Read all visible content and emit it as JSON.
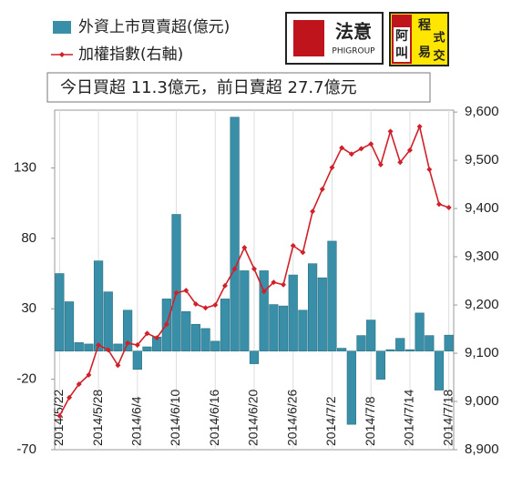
{
  "chart_data": {
    "type": "bar-line",
    "annotations": [
      "今日買超 11.3億元，前日賣超 27.7億元",
      "法意",
      "PHIGROUP",
      "阿",
      "叫",
      "程",
      "式",
      "易",
      "交"
    ],
    "categories": [
      "2014/5/22",
      null,
      null,
      null,
      "2014/5/28",
      null,
      null,
      null,
      "2014/6/4",
      null,
      null,
      null,
      "2014/6/10",
      null,
      null,
      null,
      "2014/6/16",
      null,
      null,
      null,
      "2014/6/20",
      null,
      null,
      null,
      "2014/6/26",
      null,
      null,
      null,
      "2014/7/2",
      null,
      null,
      null,
      "2014/7/8",
      null,
      null,
      null,
      "2014/7/14",
      null,
      null,
      null,
      "2014/7/18"
    ],
    "series": [
      {
        "name": "外資上市買賣超(億元)",
        "color": "#3a8fa8",
        "kind": "bar",
        "values": [
          55,
          35,
          6,
          5,
          64,
          42,
          5,
          29,
          -13,
          3,
          10,
          37,
          97,
          28,
          19,
          16,
          7,
          37,
          166,
          57,
          -9,
          57,
          33,
          32,
          54,
          29,
          62,
          52,
          78,
          2,
          -52,
          11,
          22,
          -20,
          1,
          9,
          1,
          27,
          11,
          -27.7,
          11.3
        ]
      },
      {
        "name": "加權指數(右軸)",
        "color": "#d0202a",
        "kind": "line",
        "axis": "y2",
        "values": [
          8970,
          9008,
          9036,
          9055,
          9117,
          9107,
          9075,
          9121,
          9117,
          9141,
          9132,
          9160,
          9225,
          9230,
          9202,
          9194,
          9200,
          9240,
          9275,
          9319,
          9275,
          9228,
          9247,
          9242,
          9323,
          9309,
          9394,
          9440,
          9485,
          9526,
          9513,
          9524,
          9534,
          9491,
          9560,
          9496,
          9521,
          9570,
          9481,
          9409,
          9402
        ]
      }
    ],
    "ylim": [
      -70,
      171
    ],
    "yticks": [
      -70,
      -20,
      30,
      80,
      130
    ],
    "y2lim": [
      8900,
      9604
    ],
    "y2ticks": [
      {
        "value": 8900,
        "label": "8,900"
      },
      {
        "value": 9000,
        "label": "9,000"
      },
      {
        "value": 9100,
        "label": "9,100"
      },
      {
        "value": 9200,
        "label": "9,200"
      },
      {
        "value": 9300,
        "label": "9,300"
      },
      {
        "value": 9400,
        "label": "9,400"
      },
      {
        "value": 9500,
        "label": "9,500"
      },
      {
        "value": 9600,
        "label": "9,600"
      }
    ]
  }
}
